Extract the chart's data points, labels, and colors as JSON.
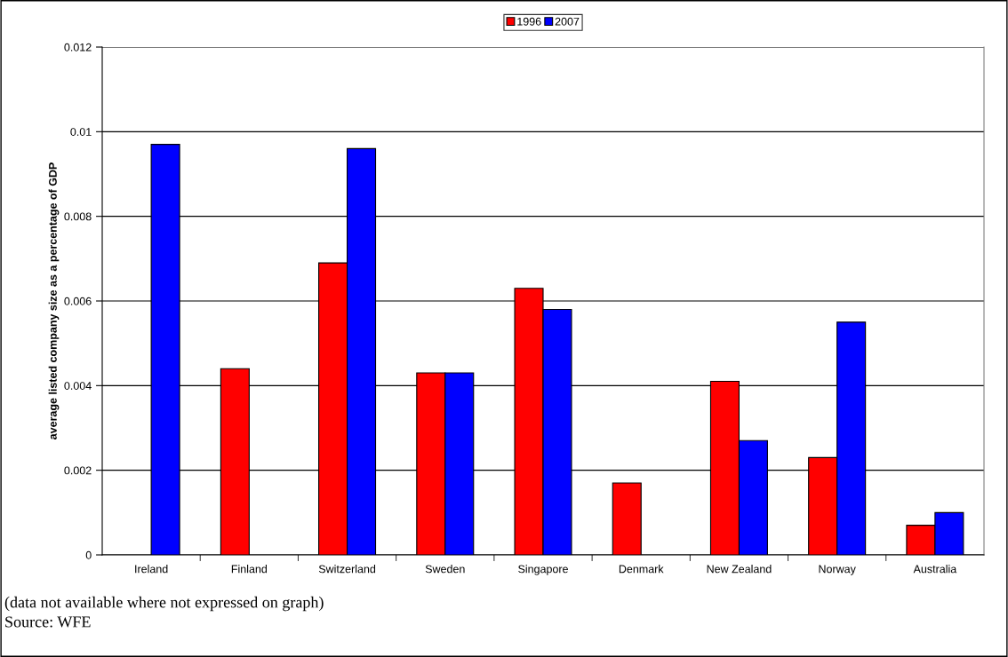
{
  "chart_data": {
    "type": "bar",
    "ylabel": "average listed company size as a percentage of GDP",
    "categories": [
      "Ireland",
      "Finland",
      "Switzerland",
      "Sweden",
      "Singapore",
      "Denmark",
      "New Zealand",
      "Norway",
      "Australia"
    ],
    "series": [
      {
        "name": "1996",
        "color": "#ff0000",
        "values": [
          null,
          0.0044,
          0.0069,
          0.0043,
          0.0063,
          0.0017,
          0.0041,
          0.0023,
          0.0007
        ]
      },
      {
        "name": "2007",
        "color": "#0000ff",
        "values": [
          0.0097,
          null,
          0.0096,
          0.0043,
          0.0058,
          null,
          0.0027,
          0.0055,
          0.001
        ]
      }
    ],
    "ylim": [
      0,
      0.012
    ],
    "yticks": [
      0,
      0.002,
      0.004,
      0.006,
      0.008,
      0.01,
      0.012
    ],
    "grid": "y",
    "legend": "top",
    "annotations": [
      "(data not available where not expressed on graph)",
      "Source: WFE"
    ]
  }
}
